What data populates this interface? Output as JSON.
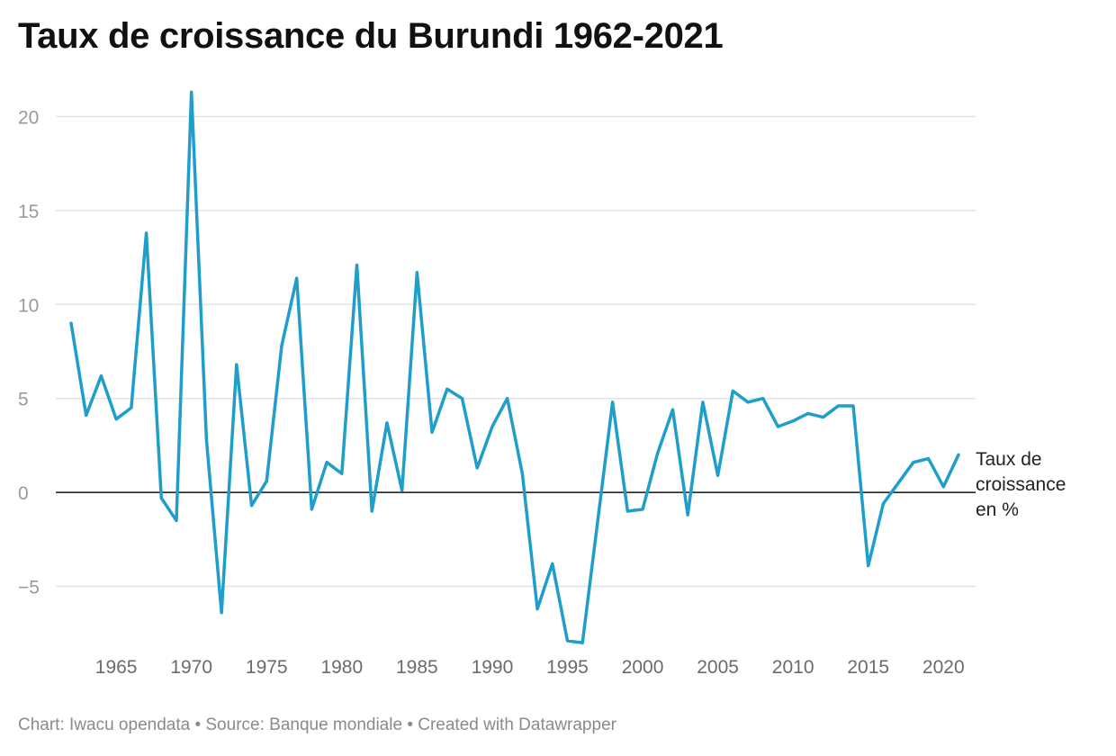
{
  "title": "Taux de croissance du Burundi 1962-2021",
  "footer": {
    "text": "Chart: Iwacu opendata • Source: Banque mondiale • Created with Datawrapper"
  },
  "colors": {
    "line": "#1f9ecb",
    "grid": "#e3e3e3",
    "zero": "#111111"
  },
  "chart_data": {
    "type": "line",
    "title": "Taux de croissance du Burundi 1962-2021",
    "xlabel": "",
    "ylabel": "",
    "xlim": [
      1962,
      2021
    ],
    "ylim": [
      -8.5,
      21.5
    ],
    "yticks": [
      20,
      15,
      10,
      5,
      0,
      -5
    ],
    "ytick_labels": [
      "20",
      "15",
      "10",
      "5",
      "0",
      "−5"
    ],
    "xticks": [
      1965,
      1970,
      1975,
      1980,
      1985,
      1990,
      1995,
      2000,
      2005,
      2010,
      2015,
      2020
    ],
    "xtick_labels": [
      "1965",
      "1970",
      "1975",
      "1980",
      "1985",
      "1990",
      "1995",
      "2000",
      "2005",
      "2010",
      "2015",
      "2020"
    ],
    "grid": true,
    "series": [
      {
        "name": "Taux de croissance en %",
        "label_lines": [
          "Taux de",
          "croissance",
          "en %"
        ],
        "x": [
          1962,
          1963,
          1964,
          1965,
          1966,
          1967,
          1968,
          1969,
          1970,
          1971,
          1972,
          1973,
          1974,
          1975,
          1976,
          1977,
          1978,
          1979,
          1980,
          1981,
          1982,
          1983,
          1984,
          1985,
          1986,
          1987,
          1988,
          1989,
          1990,
          1991,
          1992,
          1993,
          1994,
          1995,
          1996,
          1997,
          1998,
          1999,
          2000,
          2001,
          2002,
          2003,
          2004,
          2005,
          2006,
          2007,
          2008,
          2009,
          2010,
          2011,
          2012,
          2013,
          2014,
          2015,
          2016,
          2017,
          2018,
          2019,
          2020,
          2021
        ],
        "y": [
          9.0,
          4.1,
          6.2,
          3.9,
          4.5,
          13.8,
          -0.3,
          -1.5,
          21.3,
          2.8,
          -6.4,
          6.8,
          -0.7,
          0.6,
          7.8,
          11.4,
          -0.9,
          1.6,
          1.0,
          12.1,
          -1.0,
          3.7,
          0.1,
          11.7,
          3.2,
          5.5,
          5.0,
          1.3,
          3.5,
          5.0,
          1.0,
          -6.2,
          -3.8,
          -7.9,
          -8.0,
          -1.6,
          4.8,
          -1.0,
          -0.9,
          2.1,
          4.4,
          -1.2,
          4.8,
          0.9,
          5.4,
          4.8,
          5.0,
          3.5,
          3.8,
          4.2,
          4.0,
          4.6,
          4.6,
          -3.9,
          -0.6,
          0.5,
          1.6,
          1.8,
          0.3,
          2.0
        ]
      }
    ]
  }
}
